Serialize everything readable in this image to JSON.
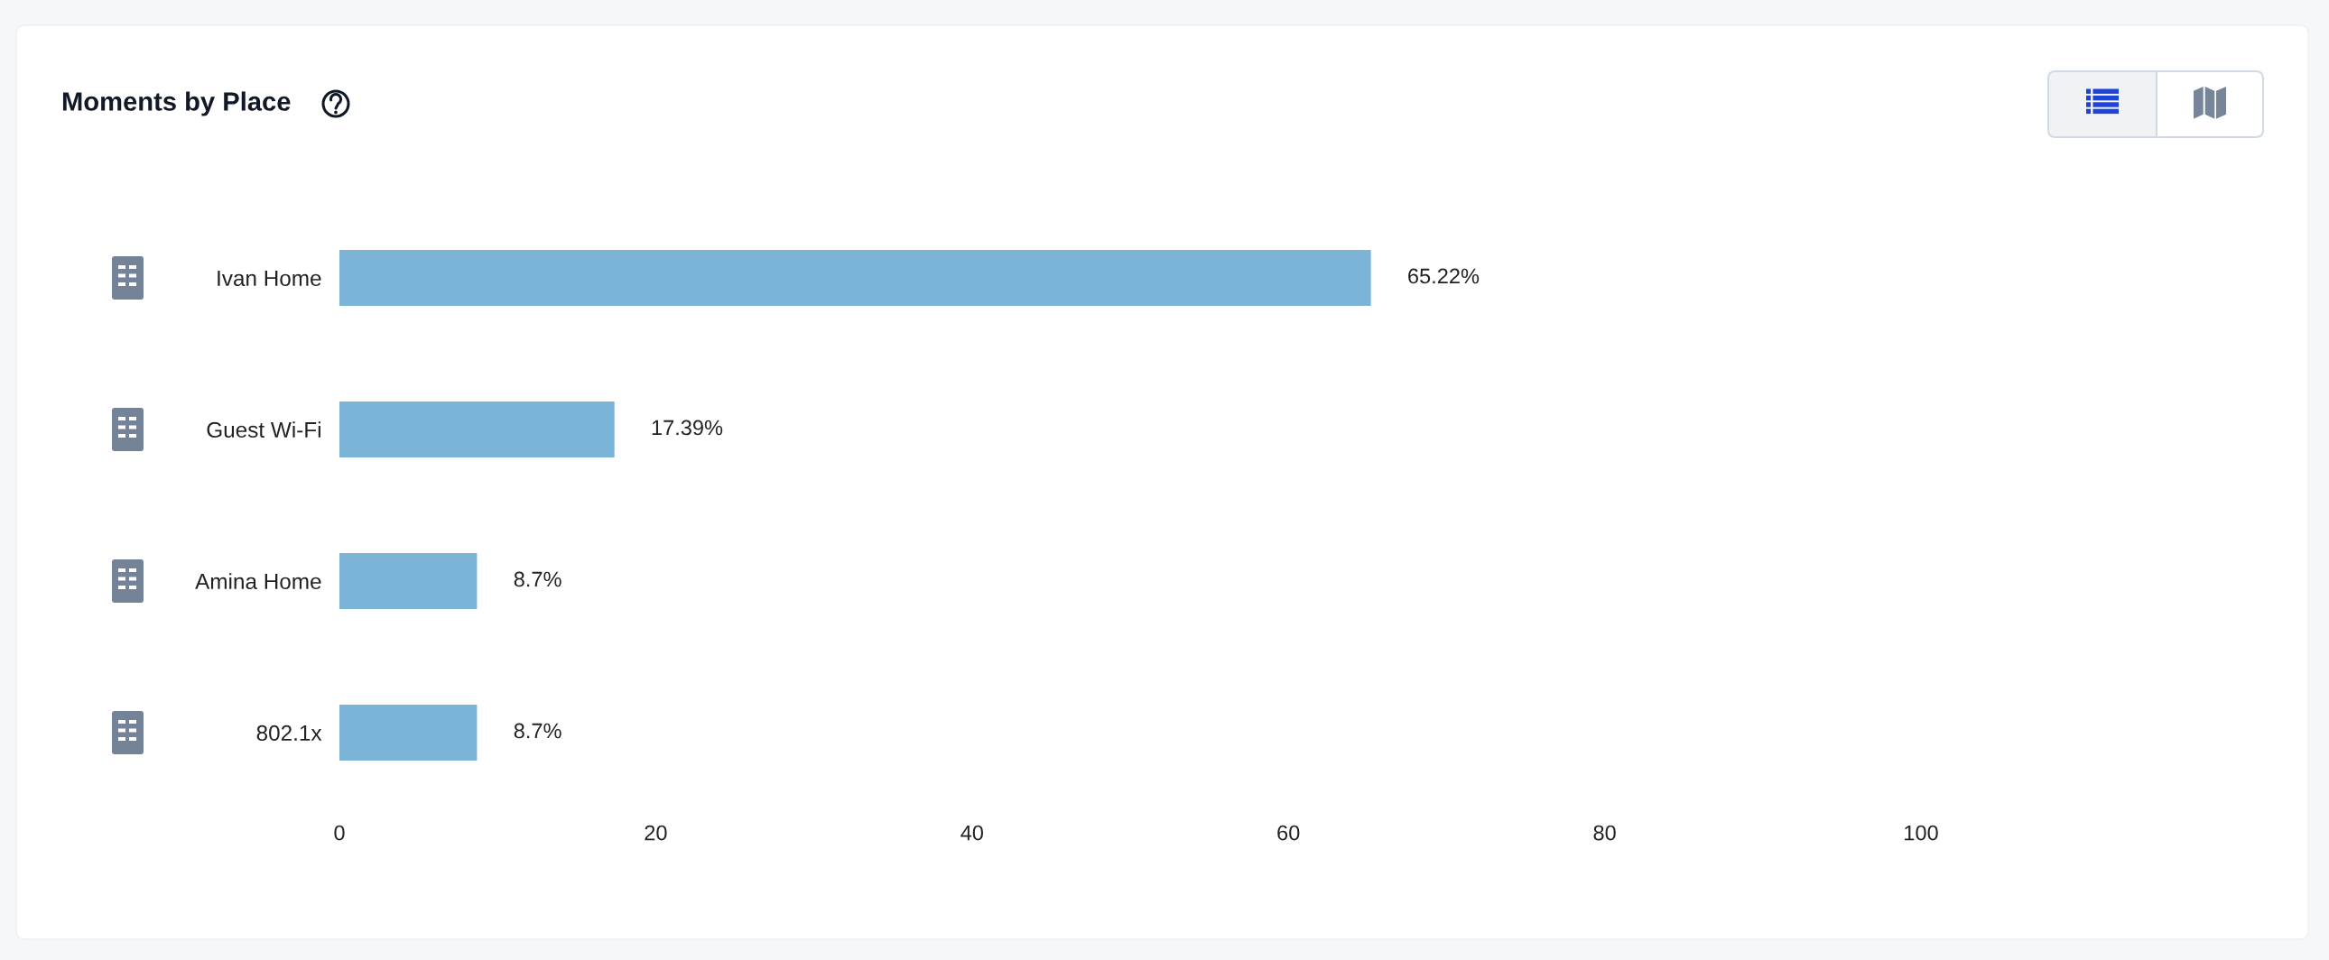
{
  "chart_data": {
    "type": "bar",
    "orientation": "horizontal",
    "title": "Moments by Place",
    "categories": [
      "Ivan Home",
      "Guest Wi-Fi",
      "Amina Home",
      "802.1x"
    ],
    "values": [
      65.22,
      17.39,
      8.7,
      8.7
    ],
    "value_labels": [
      "65.22%",
      "17.39%",
      "8.7%",
      "8.7%"
    ],
    "color": "#7cb4d8",
    "xlim": [
      0,
      100
    ],
    "xticks": [
      0,
      20,
      40,
      60,
      80,
      100
    ]
  }
}
